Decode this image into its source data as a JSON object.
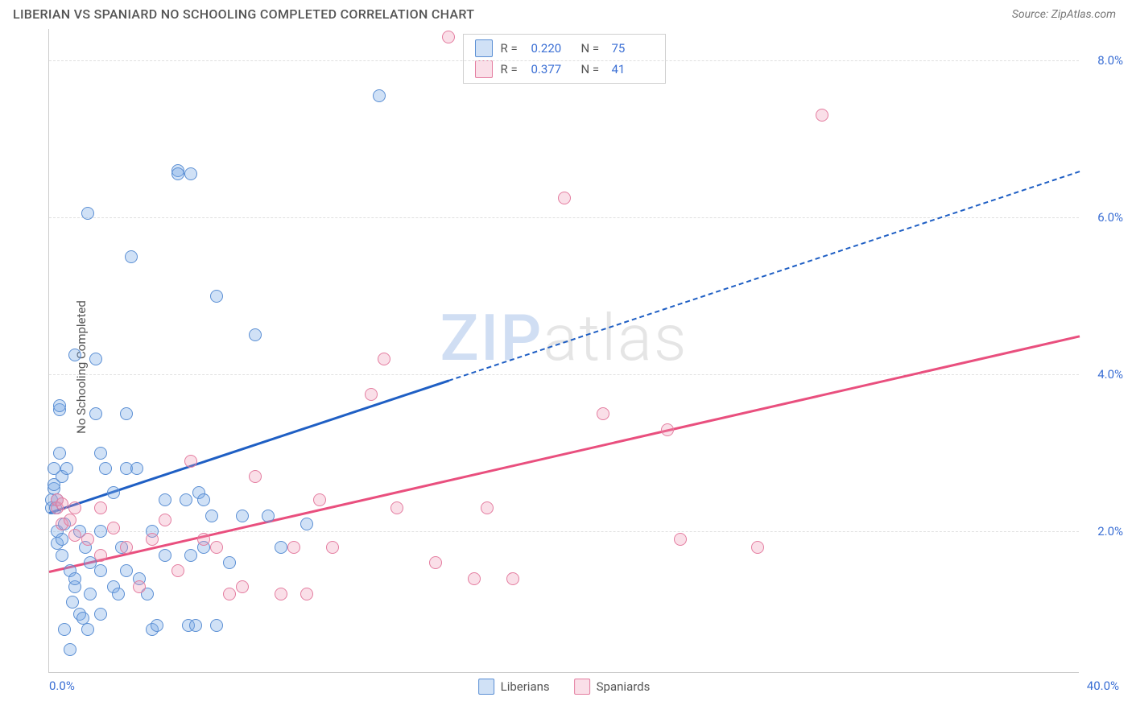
{
  "title": "LIBERIAN VS SPANIARD NO SCHOOLING COMPLETED CORRELATION CHART",
  "source": "Source: ZipAtlas.com",
  "ylabel": "No Schooling Completed",
  "watermark_a": "ZIP",
  "watermark_b": "atlas",
  "chart": {
    "type": "scatter",
    "xlim": [
      0,
      40
    ],
    "ylim": [
      0.2,
      8.4
    ],
    "xticks": [
      {
        "v": 0,
        "label": "0.0%"
      },
      {
        "v": 40,
        "label": "40.0%"
      }
    ],
    "yticks": [
      {
        "v": 2,
        "label": "2.0%"
      },
      {
        "v": 4,
        "label": "4.0%"
      },
      {
        "v": 6,
        "label": "6.0%"
      },
      {
        "v": 8,
        "label": "8.0%"
      }
    ],
    "grid_y": [
      2,
      4,
      6,
      8
    ],
    "grid_color": "#e0e0e0",
    "background_color": "#ffffff",
    "axis_color": "#cccccc",
    "tick_color": "#3b6fd4",
    "marker_radius": 8,
    "series": [
      {
        "name": "Liberians",
        "fill": "rgba(120, 170, 230, 0.35)",
        "stroke": "#5b8fd4",
        "trend_color": "#1f5fc4",
        "trend_solid_to_x": 15.5,
        "trend": {
          "x0": 0,
          "y0": 2.25,
          "x1": 40,
          "y1": 6.6
        },
        "R_label": "R = ",
        "R": "0.220",
        "N_label": "N = ",
        "N": "75",
        "points": [
          [
            0.1,
            2.4
          ],
          [
            0.1,
            2.3
          ],
          [
            0.2,
            2.55
          ],
          [
            0.2,
            2.6
          ],
          [
            0.2,
            2.8
          ],
          [
            0.25,
            2.3
          ],
          [
            0.3,
            2.0
          ],
          [
            0.3,
            1.85
          ],
          [
            0.3,
            2.4
          ],
          [
            0.4,
            3.0
          ],
          [
            0.4,
            3.55
          ],
          [
            0.4,
            3.6
          ],
          [
            0.5,
            1.9
          ],
          [
            0.5,
            2.7
          ],
          [
            0.5,
            1.7
          ],
          [
            0.6,
            2.1
          ],
          [
            0.6,
            0.75
          ],
          [
            0.7,
            2.8
          ],
          [
            0.8,
            1.5
          ],
          [
            0.8,
            0.5
          ],
          [
            0.9,
            1.1
          ],
          [
            1.0,
            1.3
          ],
          [
            1.0,
            1.4
          ],
          [
            1.0,
            4.25
          ],
          [
            1.2,
            2.0
          ],
          [
            1.2,
            0.95
          ],
          [
            1.3,
            0.9
          ],
          [
            1.4,
            1.8
          ],
          [
            1.5,
            0.75
          ],
          [
            1.5,
            6.05
          ],
          [
            1.6,
            1.2
          ],
          [
            1.6,
            1.6
          ],
          [
            1.8,
            3.5
          ],
          [
            1.8,
            4.2
          ],
          [
            2.0,
            2.0
          ],
          [
            2.0,
            1.5
          ],
          [
            2.0,
            0.95
          ],
          [
            2.0,
            3.0
          ],
          [
            2.2,
            2.8
          ],
          [
            2.5,
            2.5
          ],
          [
            2.5,
            1.3
          ],
          [
            2.7,
            1.2
          ],
          [
            2.8,
            1.8
          ],
          [
            3.0,
            1.5
          ],
          [
            3.0,
            2.8
          ],
          [
            3.2,
            5.5
          ],
          [
            3.4,
            2.8
          ],
          [
            3.5,
            1.4
          ],
          [
            3.8,
            1.2
          ],
          [
            4.0,
            0.75
          ],
          [
            4.0,
            2.0
          ],
          [
            4.2,
            0.8
          ],
          [
            4.5,
            1.7
          ],
          [
            4.5,
            2.4
          ],
          [
            5.0,
            6.6
          ],
          [
            5.0,
            6.55
          ],
          [
            5.3,
            2.4
          ],
          [
            5.4,
            0.8
          ],
          [
            5.5,
            1.7
          ],
          [
            5.7,
            0.8
          ],
          [
            5.8,
            2.5
          ],
          [
            6.0,
            1.8
          ],
          [
            6.0,
            2.4
          ],
          [
            6.3,
            2.2
          ],
          [
            6.5,
            0.8
          ],
          [
            6.5,
            5.0
          ],
          [
            7.0,
            1.6
          ],
          [
            7.5,
            2.2
          ],
          [
            8.0,
            4.5
          ],
          [
            8.5,
            2.2
          ],
          [
            9.0,
            1.8
          ],
          [
            10.0,
            2.1
          ],
          [
            12.8,
            7.55
          ],
          [
            5.5,
            6.55
          ],
          [
            3.0,
            3.5
          ]
        ]
      },
      {
        "name": "Spaniards",
        "fill": "rgba(240, 150, 180, 0.30)",
        "stroke": "#e47da0",
        "trend_color": "#e94f7e",
        "trend_solid_to_x": 40,
        "trend": {
          "x0": 0,
          "y0": 1.5,
          "x1": 40,
          "y1": 4.5
        },
        "R_label": "R = ",
        "R": "0.377",
        "N_label": "N = ",
        "N": "41",
        "points": [
          [
            0.3,
            2.3
          ],
          [
            0.3,
            2.4
          ],
          [
            0.5,
            2.1
          ],
          [
            0.5,
            2.35
          ],
          [
            0.8,
            2.15
          ],
          [
            1.0,
            2.3
          ],
          [
            1.0,
            1.95
          ],
          [
            1.5,
            1.9
          ],
          [
            2.0,
            2.3
          ],
          [
            2.0,
            1.7
          ],
          [
            2.5,
            2.05
          ],
          [
            3.0,
            1.8
          ],
          [
            3.5,
            1.3
          ],
          [
            4.0,
            1.9
          ],
          [
            4.5,
            2.15
          ],
          [
            5.0,
            1.5
          ],
          [
            5.5,
            2.9
          ],
          [
            6.0,
            1.9
          ],
          [
            6.5,
            1.8
          ],
          [
            7.0,
            1.2
          ],
          [
            7.5,
            1.3
          ],
          [
            8.0,
            2.7
          ],
          [
            9.0,
            1.2
          ],
          [
            9.5,
            1.8
          ],
          [
            10.0,
            1.2
          ],
          [
            10.5,
            2.4
          ],
          [
            11.0,
            1.8
          ],
          [
            12.5,
            3.75
          ],
          [
            13.0,
            4.2
          ],
          [
            13.5,
            2.3
          ],
          [
            15.0,
            1.6
          ],
          [
            15.5,
            8.3
          ],
          [
            16.5,
            1.4
          ],
          [
            17.0,
            2.3
          ],
          [
            18.0,
            1.4
          ],
          [
            20.0,
            6.25
          ],
          [
            21.5,
            3.5
          ],
          [
            24.0,
            3.3
          ],
          [
            24.5,
            1.9
          ],
          [
            27.5,
            1.8
          ],
          [
            30.0,
            7.3
          ]
        ]
      }
    ]
  }
}
